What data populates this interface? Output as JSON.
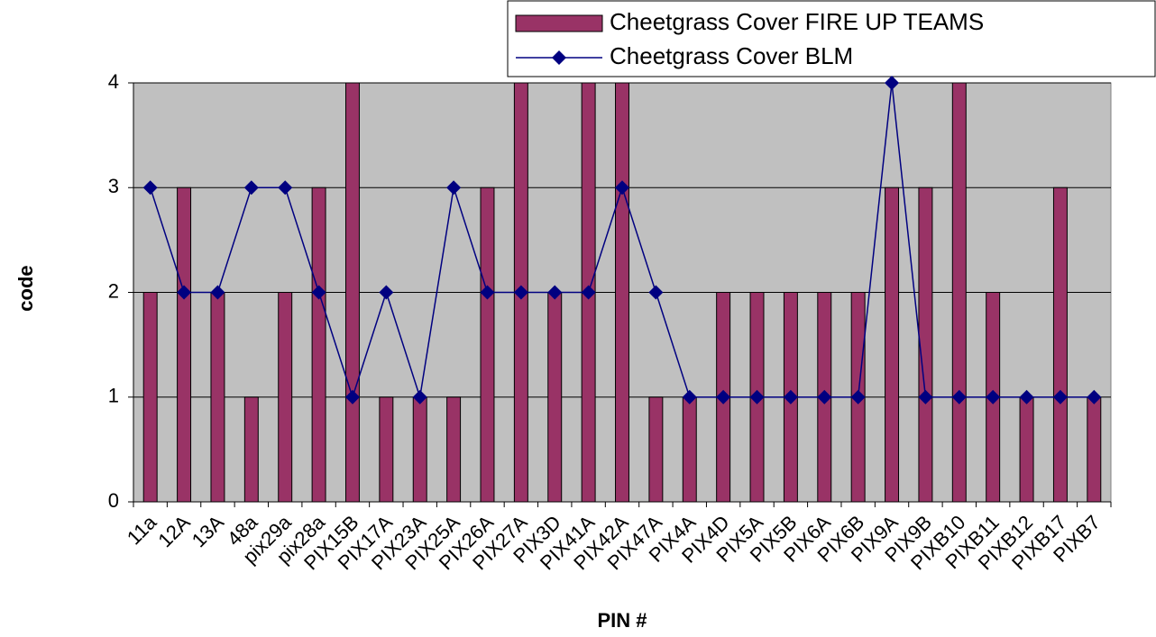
{
  "chart_data": {
    "type": "bar_line",
    "x_label": "PIN #",
    "y_label": "code",
    "categories": [
      "11a",
      "12A",
      "13A",
      "48a",
      "pix29a",
      "pix28a",
      "PIX15B",
      "PIX17A",
      "PIX23A",
      "PIX25A",
      "PIX26A",
      "PIX27A",
      "PIX3D",
      "PIX41A",
      "PIX42A",
      "PIX47A",
      "PIX4A",
      "PIX4D",
      "PIX5A",
      "PIX5B",
      "PIX6A",
      "PIX6B",
      "PIX9A",
      "PIX9B",
      "PIXB10",
      "PIXB11",
      "PIXB12",
      "PIXB17",
      "PIXB7"
    ],
    "series": [
      {
        "name": "Cheetgrass Cover FIRE UP TEAMS",
        "type": "bar",
        "color": "#993366",
        "values": [
          2,
          3,
          2,
          1,
          2,
          3,
          4,
          1,
          1,
          1,
          3,
          4,
          2,
          4,
          4,
          1,
          1,
          2,
          2,
          2,
          2,
          2,
          3,
          3,
          4,
          2,
          1,
          3,
          1
        ]
      },
      {
        "name": "Cheetgrass Cover BLM",
        "type": "line",
        "color": "#000080",
        "values": [
          3,
          2,
          2,
          3,
          3,
          2,
          1,
          2,
          1,
          3,
          2,
          2,
          2,
          2,
          3,
          2,
          1,
          1,
          1,
          1,
          1,
          1,
          4,
          1,
          1,
          1,
          1,
          1,
          1
        ]
      }
    ],
    "ylim": [
      0,
      4
    ],
    "yticks": [
      0,
      1,
      2,
      3,
      4
    ],
    "grid": true,
    "legend": "top-right"
  }
}
